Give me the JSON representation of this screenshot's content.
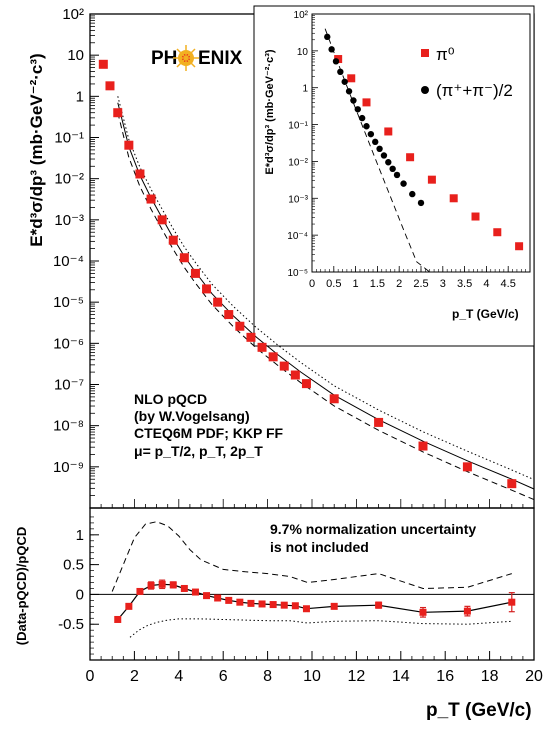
{
  "colors": {
    "marker": "#e8201c",
    "error_bar": "#d42020",
    "line": "#000000",
    "background": "#ffffff"
  },
  "logo": {
    "text_left": "PH",
    "text_right": "ENIX"
  },
  "chart_data": [
    {
      "type": "scatter",
      "name": "main-cross-section",
      "xlim": [
        0,
        20
      ],
      "ylim_log10": [
        -10,
        2
      ],
      "yscale": "log",
      "ylabel": "E*d³σ/dp³ (mb·GeV⁻²·c³)",
      "x_shared_with": "ratio",
      "series": [
        {
          "marker": "square",
          "x": [
            0.6,
            0.9,
            1.25,
            1.75,
            2.25,
            2.75,
            3.25,
            3.75,
            4.25,
            4.75,
            5.25,
            5.75,
            6.25,
            6.75,
            7.25,
            7.75,
            8.25,
            8.75,
            9.25,
            9.75,
            11.0,
            13.0,
            15.0,
            17.0,
            19.0
          ],
          "y": [
            6.0,
            1.8,
            0.4,
            0.065,
            0.013,
            0.0032,
            0.001,
            0.00032,
            0.00012,
            5e-05,
            2.1e-05,
            1e-05,
            5e-06,
            2.6e-06,
            1.4e-06,
            8e-07,
            4.7e-07,
            2.8e-07,
            1.7e-07,
            1.05e-07,
            4.5e-08,
            1.2e-08,
            3.2e-09,
            1e-09,
            3.9e-10
          ]
        }
      ],
      "curves": [
        {
          "style": "solid",
          "x": [
            1.25,
            1.75,
            2.25,
            2.75,
            3.25,
            3.75,
            4.25,
            4.75,
            5.5,
            6.5,
            7.5,
            8.5,
            9.5,
            11.0,
            13.0,
            15.0,
            17.0,
            19.0,
            20.0
          ],
          "y": [
            0.7,
            0.06,
            0.012,
            0.0034,
            0.0011,
            0.00036,
            0.00013,
            5.4e-05,
            1.6e-05,
            4.4e-06,
            1.4e-06,
            5.1e-07,
            2e-07,
            5.5e-08,
            1.4e-08,
            4.2e-09,
            1.4e-09,
            5e-10,
            2.9e-10
          ]
        },
        {
          "style": "dotted",
          "x": [
            1.25,
            1.75,
            2.25,
            2.75,
            3.25,
            3.75,
            4.25,
            4.75,
            5.5,
            6.5,
            7.5,
            8.5,
            9.5,
            11.0,
            13.0,
            15.0,
            17.0,
            19.0,
            20.0
          ],
          "y": [
            1.0,
            0.09,
            0.019,
            0.0055,
            0.0018,
            0.0006,
            0.00022,
            9.2e-05,
            2.7e-05,
            7.5e-06,
            2.4e-06,
            8.7e-07,
            3.4e-07,
            9.3e-08,
            2.4e-08,
            7.1e-09,
            2.4e-09,
            8.4e-10,
            4.9e-10
          ]
        },
        {
          "style": "dashed",
          "x": [
            1.25,
            1.75,
            2.25,
            2.75,
            3.25,
            3.75,
            4.25,
            4.75,
            5.5,
            6.5,
            7.5,
            8.5,
            9.5,
            11.0,
            13.0,
            15.0,
            17.0,
            19.0,
            20.0
          ],
          "y": [
            0.4,
            0.033,
            0.0065,
            0.0018,
            0.00058,
            0.00019,
            7e-05,
            2.9e-05,
            8.7e-06,
            2.4e-06,
            7.6e-07,
            2.8e-07,
            1.1e-07,
            3e-08,
            7.7e-09,
            2.3e-09,
            7.6e-10,
            2.7e-10,
            1.6e-10
          ]
        }
      ],
      "y_tick_labels": [
        "10⁻⁹",
        "10⁻⁸",
        "10⁻⁷",
        "10⁻⁶",
        "10⁻⁵",
        "10⁻⁴",
        "10⁻³",
        "10⁻²",
        "10⁻¹",
        "1",
        "10",
        "10²"
      ],
      "annotation_lines": [
        "NLO pQCD",
        "(by W.Vogelsang)",
        "CTEQ6M PDF; KKP FF",
        "μ= p_T/2, p_T, 2p_T"
      ]
    },
    {
      "type": "scatter",
      "name": "inset-low-pt",
      "xlim": [
        0,
        5
      ],
      "ylim_log10": [
        -5,
        2
      ],
      "yscale": "log",
      "xlabel": "p_T (GeV/c)",
      "ylabel": "E*d³σ/dp³ (mb·GeV⁻²·c³)",
      "x_tick_labels": [
        "0",
        "0.5",
        "1",
        "1.5",
        "2",
        "2.5",
        "3",
        "3.5",
        "4",
        "4.5"
      ],
      "y_tick_labels": [
        "10⁻⁵",
        "10⁻⁴",
        "10⁻³",
        "10⁻²",
        "10⁻¹",
        "1",
        "10",
        "10²"
      ],
      "legend": {
        "position": "top-right",
        "entries": [
          "π⁰",
          "(π⁺+π⁻)/2"
        ]
      },
      "series": [
        {
          "name": "π⁰",
          "marker": "square",
          "x": [
            0.6,
            0.9,
            1.25,
            1.75,
            2.25,
            2.75,
            3.25,
            3.75,
            4.25,
            4.75
          ],
          "y": [
            6.0,
            1.8,
            0.4,
            0.065,
            0.013,
            0.0032,
            0.001,
            0.00032,
            0.00012,
            5e-05
          ]
        },
        {
          "name": "(π⁺+π⁻)/2",
          "marker": "circle",
          "x": [
            0.35,
            0.45,
            0.55,
            0.65,
            0.75,
            0.85,
            0.95,
            1.05,
            1.15,
            1.25,
            1.35,
            1.45,
            1.55,
            1.65,
            1.75,
            1.85,
            1.95,
            2.1,
            2.3,
            2.5
          ],
          "y": [
            24,
            11,
            5.2,
            2.7,
            1.45,
            0.8,
            0.45,
            0.26,
            0.15,
            0.09,
            0.055,
            0.034,
            0.022,
            0.0145,
            0.0095,
            0.0063,
            0.0043,
            0.0025,
            0.0013,
            0.00075
          ]
        }
      ],
      "curves": [
        {
          "style": "dashed",
          "x": [
            0.3,
            0.6,
            0.9,
            1.2,
            1.5,
            1.8,
            2.1,
            2.4,
            2.7,
            3.0
          ],
          "y": [
            40,
            4.5,
            0.55,
            0.068,
            0.0085,
            0.0011,
            0.00014,
            1.9e-05,
            2.6e-06,
            3.6e-07
          ]
        }
      ]
    },
    {
      "type": "line",
      "name": "ratio",
      "xlim": [
        0,
        20
      ],
      "ylim": [
        -1.1,
        1.45
      ],
      "xlabel": "p_T (GeV/c)",
      "ylabel": "(Data-pQCD)/pQCD",
      "x_tick_labels": [
        "0",
        "2",
        "4",
        "6",
        "8",
        "10",
        "12",
        "14",
        "16",
        "18",
        "20"
      ],
      "y_tick_labels": [
        "-0.5",
        "0",
        "0.5",
        "1"
      ],
      "note_lines": [
        "9.7% normalization uncertainty",
        "is not included"
      ],
      "series": [
        {
          "marker": "square",
          "x": [
            1.25,
            1.75,
            2.25,
            2.75,
            3.25,
            3.75,
            4.25,
            4.75,
            5.25,
            5.75,
            6.25,
            6.75,
            7.25,
            7.75,
            8.25,
            8.75,
            9.25,
            9.75,
            11.0,
            13.0,
            15.0,
            17.0,
            19.0
          ],
          "y": [
            -0.42,
            -0.2,
            0.05,
            0.15,
            0.17,
            0.16,
            0.1,
            0.04,
            -0.02,
            -0.06,
            -0.1,
            -0.13,
            -0.15,
            -0.16,
            -0.17,
            -0.18,
            -0.19,
            -0.24,
            -0.2,
            -0.18,
            -0.3,
            -0.28,
            -0.13
          ],
          "err": [
            0.02,
            0.02,
            0.04,
            0.06,
            0.07,
            0.05,
            0.03,
            0.03,
            0.02,
            0.02,
            0.02,
            0.02,
            0.02,
            0.02,
            0.02,
            0.02,
            0.03,
            0.04,
            0.04,
            0.05,
            0.08,
            0.08,
            0.16
          ]
        }
      ],
      "curves": [
        {
          "style": "dashed",
          "x": [
            1.0,
            1.5,
            2.0,
            2.5,
            3.0,
            3.5,
            4.0,
            4.5,
            5.0,
            6.0,
            7.0,
            8.0,
            9.0,
            9.8,
            11.0,
            13.0,
            15.0,
            17.0,
            19.0
          ],
          "y": [
            0.05,
            0.5,
            0.95,
            1.18,
            1.22,
            1.15,
            0.98,
            0.75,
            0.58,
            0.42,
            0.38,
            0.35,
            0.3,
            0.2,
            0.25,
            0.35,
            0.1,
            0.12,
            0.35
          ]
        },
        {
          "style": "dotted",
          "x": [
            1.8,
            2.2,
            2.6,
            3.0,
            3.5,
            4.0,
            5.0,
            6.0,
            7.0,
            8.0,
            9.0,
            9.8,
            11.0,
            13.0,
            15.0,
            17.0,
            19.0
          ],
          "y": [
            -0.72,
            -0.6,
            -0.52,
            -0.47,
            -0.43,
            -0.41,
            -0.41,
            -0.42,
            -0.43,
            -0.44,
            -0.44,
            -0.48,
            -0.45,
            -0.44,
            -0.49,
            -0.5,
            -0.45
          ]
        }
      ]
    }
  ]
}
